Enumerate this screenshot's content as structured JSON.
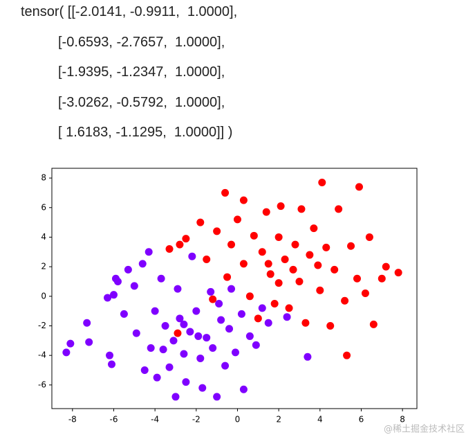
{
  "output_text": [
    "tensor( [[-2.0141, -0.9911,  1.0000],",
    "[-0.6593, -2.7657,  1.0000],",
    "[-1.9395, -1.2347,  1.0000],",
    "[-3.0262, -0.5792,  1.0000],",
    "[ 1.6183, -1.1295,  1.0000]] )"
  ],
  "watermark": "@稀土掘金技术社区",
  "chart_data": {
    "type": "scatter",
    "xlim": [
      -9,
      8.7
    ],
    "ylim": [
      -7.6,
      8.66
    ],
    "xticks": [
      -8,
      -6,
      -4,
      -2,
      0,
      2,
      4,
      6,
      8
    ],
    "yticks": [
      -6,
      -4,
      -2,
      0,
      2,
      4,
      6,
      8
    ],
    "grid": false,
    "series": [
      {
        "color": "#7f00ff",
        "x": [
          -8.3,
          -8.1,
          -7.3,
          -7.2,
          -6.3,
          -6.2,
          -6.1,
          -6,
          -5.9,
          -5.8,
          -5.5,
          -5.3,
          -5,
          -4.9,
          -4.6,
          -4.5,
          -4.3,
          -4.2,
          -4,
          -3.9,
          -3.7,
          -3.5,
          -3.3,
          -3.1,
          -3,
          -2.9,
          -2.8,
          -2.6,
          -2.5,
          -2.3,
          -2.2,
          -2,
          -1.8,
          -1.7,
          -1.5,
          -1.3,
          -1.2,
          -1,
          -0.8,
          -0.6,
          -0.4,
          -0.3,
          -0.1,
          0.2,
          0.3,
          0.6,
          0.9,
          1.2,
          1.5,
          2.4,
          3.4,
          -2.6,
          -1.9,
          -3.6,
          -0.9
        ],
        "y": [
          -3.8,
          -3.2,
          -1.8,
          -3.1,
          -0.1,
          -4,
          -4.6,
          0.1,
          1.2,
          1,
          -1.2,
          1.8,
          0.7,
          -2.5,
          2.2,
          -5,
          3,
          -3.5,
          -1,
          -5.5,
          1.2,
          -2,
          -4.8,
          -3,
          -6.8,
          0.5,
          -1.5,
          -3.9,
          -5.8,
          -2.4,
          2.7,
          -1,
          -4.2,
          -6.2,
          -2.8,
          0.3,
          -3.5,
          -6.8,
          -1.6,
          -4.7,
          -2.2,
          0.5,
          -3.8,
          -1.2,
          -6.3,
          -2.7,
          -3.3,
          -0.8,
          -1.8,
          -1.4,
          -4.1,
          -1.9,
          -2.7,
          -3.6,
          -0.5
        ]
      },
      {
        "color": "#ff0000",
        "x": [
          -3.3,
          -2.8,
          -2.5,
          -2.9,
          -1.8,
          -1.5,
          -1.2,
          -1,
          -0.6,
          -0.5,
          -0.3,
          0,
          0.3,
          0.3,
          0.6,
          0.8,
          1,
          1.2,
          1.4,
          1.6,
          1.8,
          2,
          2.1,
          2.3,
          2.5,
          2.8,
          3,
          3.1,
          3.3,
          3.5,
          3.7,
          4,
          4.1,
          4.3,
          4.5,
          4.7,
          4.9,
          5.2,
          5.3,
          5.5,
          5.8,
          5.9,
          6.2,
          6.4,
          6.6,
          7,
          7.2,
          7.8,
          2,
          3.9,
          1.5,
          2.7
        ],
        "y": [
          3.2,
          3.5,
          3.9,
          -2.5,
          5,
          2.5,
          -0.2,
          4.4,
          7,
          1.3,
          3.5,
          5.2,
          2.2,
          6.5,
          0,
          4.1,
          -1.5,
          3,
          5.7,
          1.5,
          -0.5,
          4,
          6.1,
          2.5,
          -0.8,
          3.5,
          1,
          5.9,
          -1.8,
          2.8,
          4.6,
          0.4,
          7.7,
          3.3,
          -2,
          1.8,
          5.9,
          -0.3,
          -4,
          3.4,
          1.2,
          7.4,
          0.2,
          4,
          -1.9,
          1.2,
          2,
          1.6,
          0.9,
          2.1,
          2.2,
          1.8
        ]
      }
    ]
  }
}
